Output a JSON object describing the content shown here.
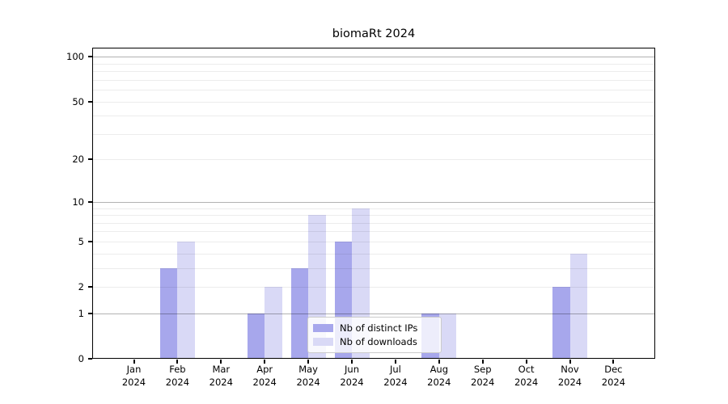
{
  "title": "biomaRt 2024",
  "chart_data": {
    "type": "bar",
    "title": "biomaRt 2024",
    "categories": [
      "Jan",
      "Feb",
      "Mar",
      "Apr",
      "May",
      "Jun",
      "Jul",
      "Aug",
      "Sep",
      "Oct",
      "Nov",
      "Dec"
    ],
    "category_year": "2024",
    "series": [
      {
        "name": "Nb of distinct IPs",
        "color": "#a7a7ec",
        "values": [
          0,
          3,
          0,
          1,
          3,
          5,
          0,
          1,
          0,
          0,
          2,
          0
        ]
      },
      {
        "name": "Nb of downloads",
        "color": "#d9d9f6",
        "values": [
          0,
          5,
          0,
          2,
          8,
          9,
          0,
          1,
          0,
          0,
          4,
          0
        ]
      }
    ],
    "y_axis": {
      "scale": "log1p",
      "tick_values": [
        0,
        1,
        2,
        5,
        10,
        20,
        50,
        100
      ],
      "emphasized_gridlines": [
        1,
        10,
        100
      ],
      "minor_gridline_steps": [
        2,
        3,
        4,
        5,
        6,
        7,
        8,
        9,
        20,
        30,
        40,
        50,
        60,
        70,
        80,
        90
      ],
      "range_max": 115
    },
    "grid": true,
    "legend_position": "lower-center",
    "colors": {
      "bar_distinct_ips": "#a7a7ec",
      "bar_downloads": "#d9d9f6",
      "gridline_minor": "rgba(0,0,0,0.075)",
      "gridline_major": "rgba(0,0,0,0.30)",
      "axis": "#000000",
      "background": "#ffffff"
    }
  }
}
